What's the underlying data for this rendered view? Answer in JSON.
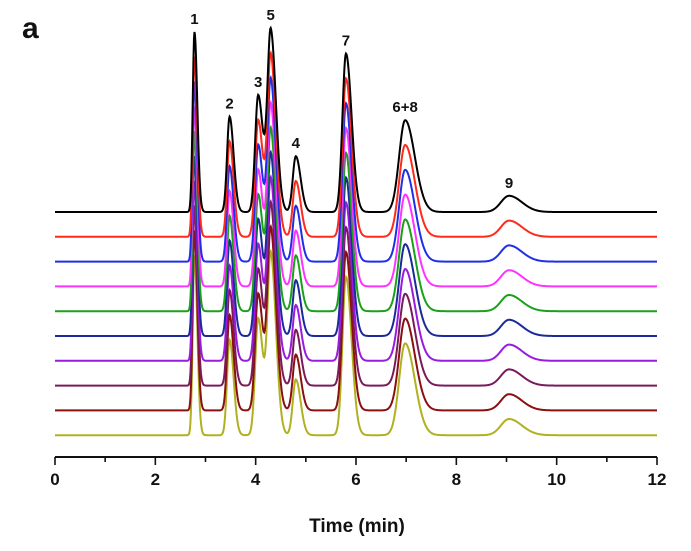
{
  "panel_label": "a",
  "chart_data": {
    "type": "line",
    "xlabel": "Time (min)",
    "xlim": [
      0,
      12
    ],
    "x_ticks": [
      0,
      2,
      4,
      6,
      8,
      10,
      12
    ],
    "grid": false,
    "legend": "none",
    "peaks": [
      {
        "label": "1",
        "time": 2.78,
        "height": 1.0,
        "sigma": 0.035
      },
      {
        "label": "2",
        "time": 3.48,
        "height": 0.53,
        "sigma": 0.05
      },
      {
        "label": "3",
        "time": 4.05,
        "height": 0.65,
        "sigma": 0.06
      },
      {
        "label": "4",
        "time": 4.8,
        "height": 0.31,
        "sigma": 0.06
      },
      {
        "label": "5",
        "time": 4.3,
        "height": 1.0,
        "sigma": 0.065
      },
      {
        "label": "7",
        "time": 5.8,
        "height": 0.88,
        "sigma": 0.07
      },
      {
        "label": "6+8",
        "time": 6.98,
        "height": 0.51,
        "sigma": 0.12
      },
      {
        "label": "9",
        "time": 9.05,
        "height": 0.09,
        "sigma": 0.16
      }
    ],
    "series": [
      {
        "color": "#000000"
      },
      {
        "color": "#ff2a1a"
      },
      {
        "color": "#1f2fe8"
      },
      {
        "color": "#ff33ff"
      },
      {
        "color": "#1aa01a"
      },
      {
        "color": "#1a2a9a"
      },
      {
        "color": "#9a1ae0"
      },
      {
        "color": "#7a1a5a"
      },
      {
        "color": "#8a1010"
      },
      {
        "color": "#b0b020"
      }
    ]
  }
}
